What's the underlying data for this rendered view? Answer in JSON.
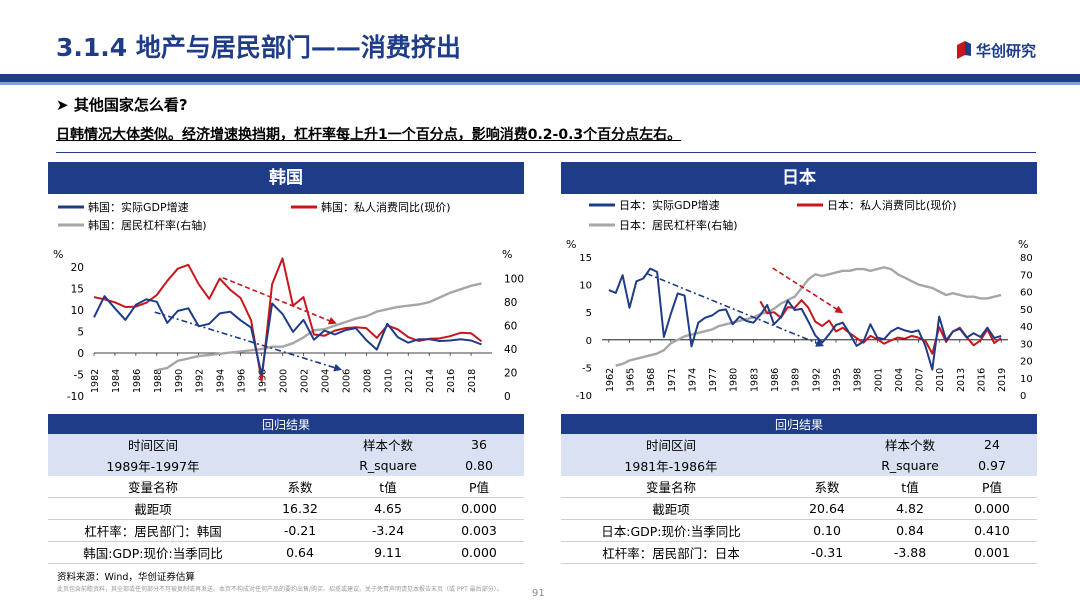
{
  "header": {
    "title": "3.1.4 地产与居民部门——消费挤出",
    "logo_text": "华创研究",
    "colors": {
      "brand": "#1f3c88",
      "light_rule": "#7fa0d8",
      "gdp": "#1f3c88",
      "consumption": "#c8161d",
      "leverage": "#a6a6a6"
    }
  },
  "subtitle": "其他国家怎么看?",
  "lead": "日韩情况大体类似。经济增速换挡期，杠杆率每上升1一个百分点，影响消费0.2-0.3个百分点左右。",
  "panels": {
    "korea": {
      "head": "韩国"
    },
    "japan": {
      "head": "日本"
    }
  },
  "chart_data": [
    {
      "type": "line",
      "legend": [
        "韩国：实际GDP增速",
        "韩国：私人消费同比(现价)",
        "韩国：居民杠杆率(右轴)"
      ],
      "ylabel_left": "%",
      "ylabel_right": "%",
      "ylim_left": [
        -10,
        20
      ],
      "yticks_left": [
        -10,
        -5,
        0,
        5,
        10,
        15,
        20
      ],
      "ylim_right": [
        0,
        110
      ],
      "yticks_right": [
        0,
        20,
        40,
        60,
        80,
        100
      ],
      "xlim": [
        1982,
        2020
      ],
      "x_ticks": [
        "1982",
        "1984",
        "1986",
        "1988",
        "1990",
        "1992",
        "1994",
        "1996",
        "1998",
        "2000",
        "2002",
        "2004",
        "2006",
        "2008",
        "2010",
        "2012",
        "2014",
        "2016",
        "2018"
      ],
      "x": [
        1982,
        1983,
        1984,
        1985,
        1986,
        1987,
        1988,
        1989,
        1990,
        1991,
        1992,
        1993,
        1994,
        1995,
        1996,
        1997,
        1998,
        1999,
        2000,
        2001,
        2002,
        2003,
        2004,
        2005,
        2006,
        2007,
        2008,
        2009,
        2010,
        2011,
        2012,
        2013,
        2014,
        2015,
        2016,
        2017,
        2018,
        2019
      ],
      "series": [
        {
          "name": "韩国：实际GDP增速",
          "axis": "left",
          "values": [
            8.3,
            13.2,
            10.4,
            7.7,
            11.2,
            12.5,
            11.9,
            7.0,
            9.8,
            10.4,
            6.2,
            6.8,
            9.2,
            9.6,
            7.6,
            5.9,
            -5.1,
            11.5,
            9.1,
            4.9,
            7.7,
            3.1,
            5.2,
            4.3,
            5.3,
            5.8,
            3.0,
            0.8,
            6.8,
            3.7,
            2.4,
            3.2,
            3.2,
            2.8,
            2.9,
            3.2,
            2.9,
            2.0
          ]
        },
        {
          "name": "韩国：私人消费同比(现价)",
          "axis": "left",
          "values": [
            13.0,
            12.5,
            11.8,
            10.7,
            10.8,
            11.7,
            13.5,
            16.8,
            19.6,
            20.5,
            16.0,
            12.6,
            17.3,
            14.7,
            12.8,
            7.6,
            -6.4,
            16.0,
            22.0,
            11.0,
            13.0,
            4.3,
            4.0,
            5.2,
            5.8,
            6.0,
            5.8,
            3.5,
            6.4,
            5.5,
            3.7,
            2.8,
            3.3,
            3.4,
            3.9,
            4.7,
            4.6,
            2.7
          ]
        },
        {
          "name": "韩国：居民杠杆率(右轴)",
          "axis": "right",
          "values": [
            null,
            null,
            null,
            null,
            null,
            null,
            22,
            24,
            30,
            32,
            34,
            35,
            36,
            37,
            38,
            39,
            40,
            42,
            42,
            45,
            50,
            56,
            57,
            60,
            63,
            66,
            68,
            72,
            74,
            76,
            77,
            78,
            80,
            84,
            88,
            91,
            94,
            96
          ]
        }
      ],
      "annotations": [
        {
          "type": "dashed-arrow",
          "color": "#1f3c88",
          "from": [
            1987.8,
            9.5
          ],
          "to": [
            2005.5,
            -3.8
          ]
        },
        {
          "type": "dashed-arrow",
          "color": "#c8161d",
          "from": [
            1994.3,
            17.5
          ],
          "to": [
            2005,
            7
          ]
        }
      ]
    },
    {
      "type": "line",
      "legend": [
        "日本：实际GDP增速",
        "日本：私人消费同比(现价)",
        "日本：居民杠杆率(右轴)"
      ],
      "ylabel_left": "%",
      "ylabel_right": "%",
      "ylim_left": [
        -10,
        15
      ],
      "yticks_left": [
        -10,
        -5,
        0,
        5,
        10,
        15
      ],
      "ylim_right": [
        0,
        80
      ],
      "yticks_right": [
        0,
        10,
        20,
        30,
        40,
        50,
        60,
        70,
        80
      ],
      "xlim": [
        1961,
        2020
      ],
      "x_ticks": [
        "1962",
        "1965",
        "1968",
        "1971",
        "1974",
        "1977",
        "1980",
        "1983",
        "1986",
        "1989",
        "1992",
        "1995",
        "1998",
        "2001",
        "2004",
        "2007",
        "2010",
        "2013",
        "2016",
        "2019"
      ],
      "x": [
        1961,
        1962,
        1963,
        1964,
        1965,
        1966,
        1967,
        1968,
        1969,
        1970,
        1971,
        1972,
        1973,
        1974,
        1975,
        1976,
        1977,
        1978,
        1979,
        1980,
        1981,
        1982,
        1983,
        1984,
        1985,
        1986,
        1987,
        1988,
        1989,
        1990,
        1991,
        1992,
        1993,
        1994,
        1995,
        1996,
        1997,
        1998,
        1999,
        2000,
        2001,
        2002,
        2003,
        2004,
        2005,
        2006,
        2007,
        2008,
        2009,
        2010,
        2011,
        2012,
        2013,
        2014,
        2015,
        2016,
        2017,
        2018,
        2019
      ],
      "series": [
        {
          "name": "日本：实际GDP增速",
          "axis": "left",
          "values": [
            null,
            9.0,
            8.5,
            11.7,
            5.8,
            10.6,
            11.1,
            12.9,
            12.3,
            0.5,
            4.7,
            8.4,
            8.0,
            -1.2,
            3.1,
            4.0,
            4.4,
            5.3,
            5.5,
            2.8,
            4.2,
            3.4,
            3.1,
            4.5,
            6.3,
            2.8,
            4.1,
            7.1,
            5.4,
            5.6,
            3.3,
            0.8,
            -0.5,
            1.0,
            2.7,
            3.1,
            1.1,
            -1.1,
            -0.3,
            2.8,
            0.4,
            0.1,
            1.5,
            2.2,
            1.7,
            1.4,
            1.7,
            -1.1,
            -5.4,
            4.2,
            -0.1,
            1.5,
            2.0,
            0.4,
            1.2,
            0.5,
            2.2,
            0.3,
            0.7
          ]
        },
        {
          "name": "日本：私人消费同比(现价)",
          "axis": "left",
          "values": [
            null,
            null,
            null,
            null,
            null,
            null,
            null,
            null,
            null,
            null,
            null,
            null,
            null,
            null,
            null,
            null,
            null,
            null,
            null,
            null,
            null,
            null,
            null,
            7.0,
            4.8,
            5.0,
            4.0,
            5.9,
            5.8,
            7.2,
            5.8,
            3.3,
            2.5,
            3.5,
            1.5,
            2.2,
            1.2,
            0.3,
            -0.5,
            0.7,
            0.1,
            -0.7,
            -0.1,
            0.4,
            0.2,
            0.7,
            0.4,
            -0.2,
            -2.5,
            2.3,
            -0.4,
            1.5,
            2.2,
            0.5,
            -1.0,
            -0.1,
            1.9,
            -0.6,
            0.3
          ]
        },
        {
          "name": "日本：居民杠杆率(右轴)",
          "axis": "right",
          "values": [
            null,
            null,
            17,
            18,
            20,
            21,
            22,
            23,
            24,
            26,
            30,
            32,
            34,
            35,
            36,
            37,
            38,
            40,
            41,
            42,
            43,
            44,
            45,
            47,
            48,
            50,
            53,
            55,
            57,
            62,
            67,
            70,
            69,
            70,
            71,
            72,
            72,
            73,
            73,
            72,
            73,
            74,
            73,
            70,
            68,
            66,
            64,
            63,
            62,
            60,
            58,
            59,
            58,
            57,
            57,
            56,
            56,
            57,
            58
          ]
        }
      ],
      "annotations": [
        {
          "type": "dashed-arrow",
          "color": "#1f3c88",
          "from": [
            1967.5,
            12
          ],
          "to": [
            1993,
            -1
          ]
        },
        {
          "type": "dashed-arrow",
          "color": "#c8161d",
          "from": [
            1985.8,
            13
          ],
          "to": [
            1995.8,
            5
          ]
        }
      ]
    }
  ],
  "tables": {
    "korea": {
      "caption": "回归结果",
      "info": [
        [
          "时间区间",
          "样本个数",
          "36"
        ],
        [
          "1989年-1997年",
          "R_square",
          "0.80"
        ]
      ],
      "columns": [
        "变量名称",
        "系数",
        "t值",
        "P值"
      ],
      "rows": [
        [
          "截距项",
          "16.32",
          "4.65",
          "0.000"
        ],
        [
          "杠杆率：居民部门：韩国",
          "-0.21",
          "-3.24",
          "0.003"
        ],
        [
          "韩国:GDP:现价:当季同比",
          "0.64",
          "9.11",
          "0.000"
        ]
      ]
    },
    "japan": {
      "caption": "回归结果",
      "info": [
        [
          "时间区间",
          "样本个数",
          "24"
        ],
        [
          "1981年-1986年",
          "R_square",
          "0.97"
        ]
      ],
      "columns": [
        "变量名称",
        "系数",
        "t值",
        "P值"
      ],
      "rows": [
        [
          "截距项",
          "20.64",
          "4.82",
          "0.000"
        ],
        [
          "日本:GDP:现价:当季同比",
          "0.10",
          "0.84",
          "0.410"
        ],
        [
          "杠杆率：居民部门：日本",
          "-0.31",
          "-3.88",
          "0.001"
        ]
      ]
    }
  },
  "footer": {
    "source": "资料来源：Wind，华创证券估算",
    "disclaimer": "此页包含前瞻资料，其全部或任何部分不可被复制或再发送。本页不构成对任何产品的要约出售/购买、招揽或建议。关于免责声明请见本报告末页（或 PPT 最后部分）。",
    "page": "91"
  }
}
